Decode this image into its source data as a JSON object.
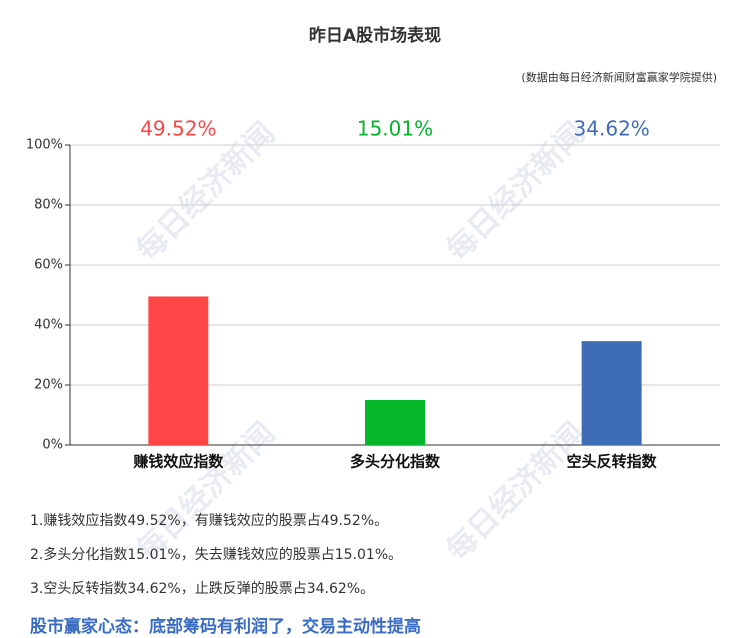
{
  "chart_data": {
    "type": "bar",
    "title": "昨日A股市场表现",
    "subtitle": "(数据由每日经济新闻财富赢家学院提供)",
    "categories": [
      "赚钱效应指数",
      "多头分化指数",
      "空头反转指数"
    ],
    "values": [
      49.52,
      15.01,
      34.62
    ],
    "value_labels": [
      "49.52%",
      "15.01%",
      "34.62%"
    ],
    "colors": [
      "#ff4646",
      "#05b52a",
      "#3f6db5"
    ],
    "ylim": [
      0,
      100
    ],
    "yticks": [
      {
        "value": 0,
        "label": "0%"
      },
      {
        "value": 20,
        "label": "20%"
      },
      {
        "value": 40,
        "label": "40%"
      },
      {
        "value": 60,
        "label": "60%"
      },
      {
        "value": 80,
        "label": "80%"
      },
      {
        "value": 100,
        "label": "100%"
      }
    ],
    "grid": true
  },
  "watermark": "每日经济新闻",
  "notes": [
    "1.赚钱效应指数49.52%，有赚钱效应的股票占49.52%。",
    "2.多头分化指数15.01%，失去赚钱效应的股票占15.01%。",
    "3.空头反转指数34.62%，止跌反弹的股票占34.62%。"
  ],
  "conclusion": "股市赢家心态：底部筹码有利润了，交易主动性提高"
}
